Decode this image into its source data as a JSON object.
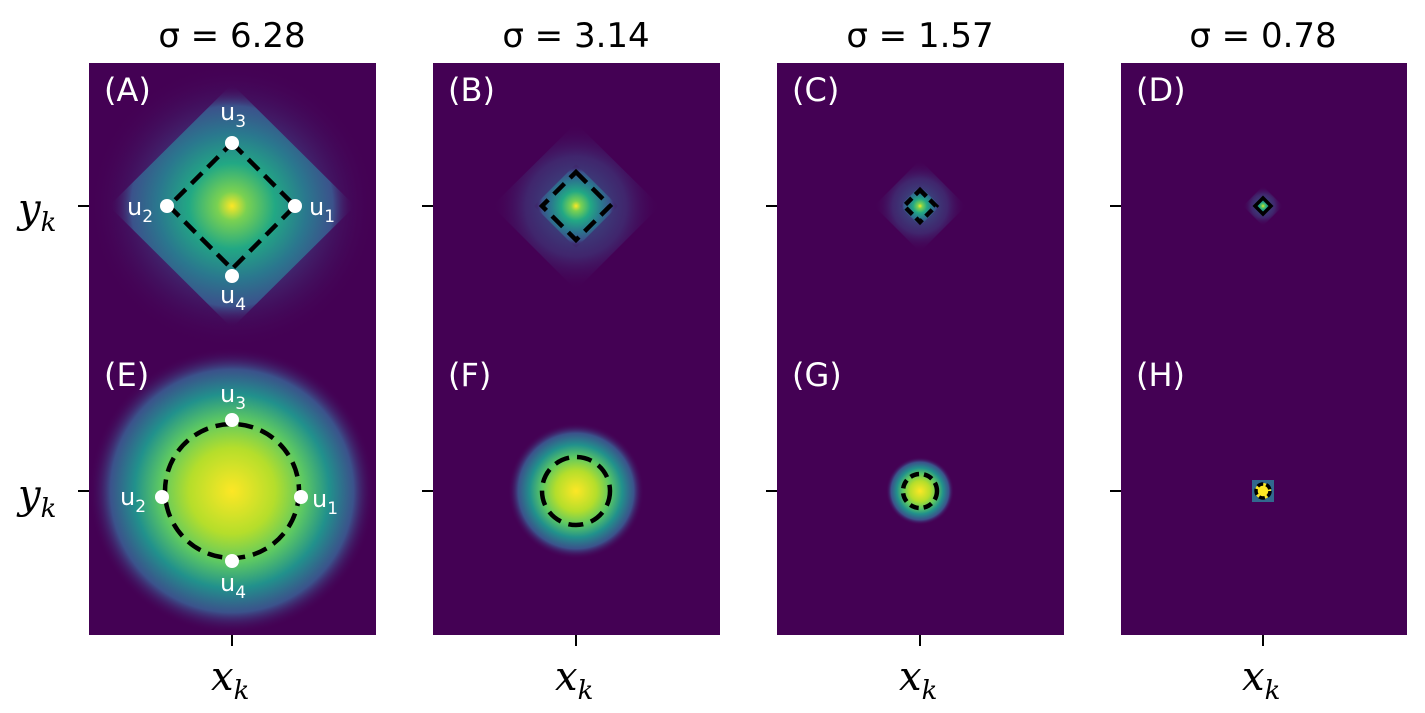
{
  "figure": {
    "columns": [
      {
        "title": "σ = 6.28",
        "sigma": 6.28
      },
      {
        "title": "σ = 3.14",
        "sigma": 3.14
      },
      {
        "title": "σ = 1.57",
        "sigma": 1.57
      },
      {
        "title": "σ = 0.78",
        "sigma": 0.78
      }
    ],
    "rows": [
      {
        "shape": "diamond",
        "panels": [
          "(A)",
          "(B)",
          "(C)",
          "(D)"
        ]
      },
      {
        "shape": "circle",
        "panels": [
          "(E)",
          "(F)",
          "(G)",
          "(H)"
        ]
      }
    ],
    "points": [
      {
        "base": "u",
        "sub": "1"
      },
      {
        "base": "u",
        "sub": "2"
      },
      {
        "base": "u",
        "sub": "3"
      },
      {
        "base": "u",
        "sub": "4"
      }
    ],
    "x_axis_label": {
      "base": "x",
      "sub": "k"
    },
    "y_axis_label": {
      "base": "y",
      "sub": "k"
    },
    "colormap": [
      "#440154",
      "#3b528b",
      "#21918c",
      "#5ec962",
      "#fde725"
    ]
  }
}
